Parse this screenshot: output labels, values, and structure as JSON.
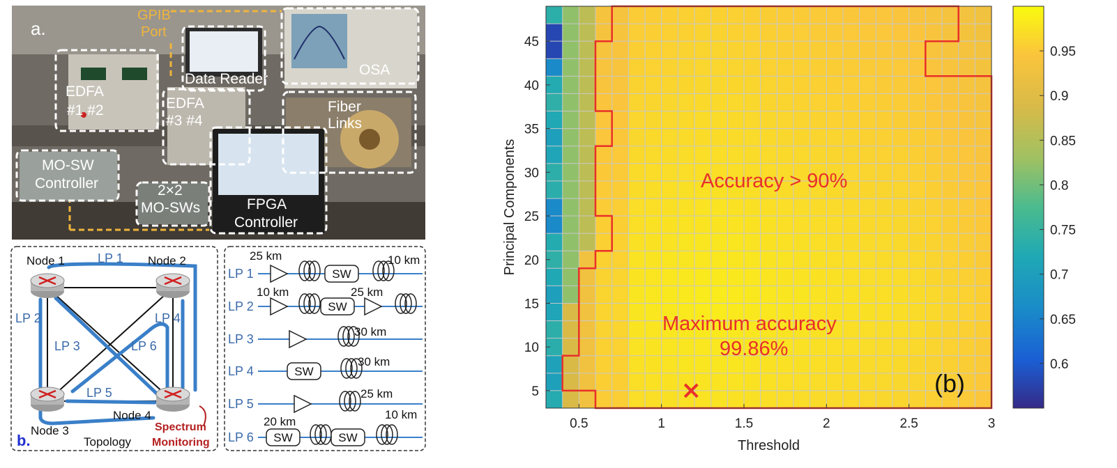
{
  "panel_a": {
    "label": "a.",
    "gpib_line1": "GPIB",
    "gpib_line2": "Port",
    "data_reader": "Data Reader",
    "osa": "OSA",
    "edfa12_line1": "EDFA",
    "edfa12_line2": "#1 #2",
    "edfa34_line1": "EDFA",
    "edfa34_line2": "#3 #4",
    "fiber_line1": "Fiber",
    "fiber_line2": "Links",
    "mosw_ctrl_line1": "MO-SW",
    "mosw_ctrl_line2": "Controller",
    "mosws_line1": "2×2",
    "mosws_line2": "MO-SWs",
    "fpga_line1": "FPGA",
    "fpga_line2": "Controller"
  },
  "panel_b_topology": {
    "label": "b.",
    "caption": "Topology",
    "node1": "Node 1",
    "node2": "Node 2",
    "node3": "Node 3",
    "node4": "Node 4",
    "lp1": "LP 1",
    "lp2": "LP 2",
    "lp3": "LP 3",
    "lp4": "LP 4",
    "lp5": "LP 5",
    "lp6": "LP 6",
    "spectrum_line1": "Spectrum",
    "spectrum_line2": "Monitoring"
  },
  "panel_b_links": {
    "rows": [
      {
        "label": "LP 1",
        "d1": "25 km",
        "d2": "10 km",
        "sw": "SW"
      },
      {
        "label": "LP 2",
        "d1": "10 km",
        "d2": "25 km",
        "sw": "SW"
      },
      {
        "label": "LP 3",
        "d1": "30 km"
      },
      {
        "label": "LP 4",
        "d1": "30 km",
        "sw": "SW"
      },
      {
        "label": "LP 5",
        "d1": "25 km"
      },
      {
        "label": "LP 6",
        "d1": "20 km",
        "d2": "10 km",
        "sw": "SW"
      }
    ]
  },
  "chart_data": {
    "type": "heatmap",
    "xlabel": "Threshold",
    "ylabel": "Principal Components",
    "xlim": [
      0.3,
      3.0
    ],
    "ylim": [
      3,
      49
    ],
    "xticks": [
      "0.5",
      "1",
      "1.5",
      "2",
      "2.5",
      "3"
    ],
    "yticks": [
      "5",
      "10",
      "15",
      "20",
      "25",
      "30",
      "35",
      "40",
      "45"
    ],
    "colorbar_ticks": [
      "0.6",
      "0.65",
      "0.7",
      "0.75",
      "0.8",
      "0.85",
      "0.9",
      "0.95"
    ],
    "colorbar_range": [
      0.55,
      1.0
    ],
    "annotation_region": "Accuracy > 90%",
    "annotation_max_line1": "Maximum accuracy",
    "annotation_max_line2": "99.86%",
    "max_point": {
      "x": 1.18,
      "y": 5,
      "value": 0.9986
    },
    "panel_label": "(b)",
    "colors": {
      "region": "#e8302a",
      "grid": "#c8c8c8"
    }
  }
}
